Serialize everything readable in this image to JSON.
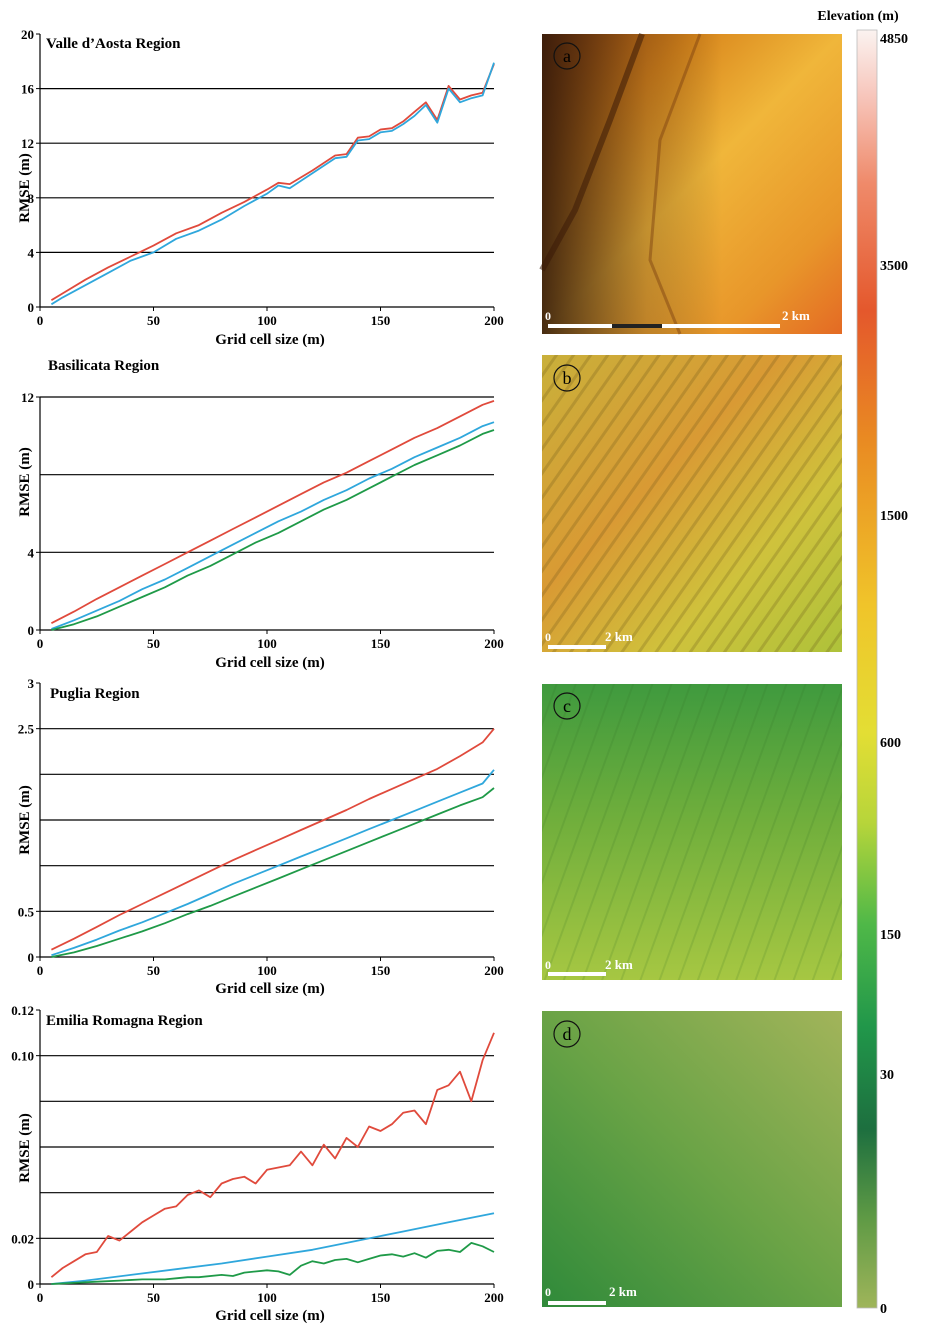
{
  "colors": {
    "red": "#e04a3c",
    "blue": "#2fa7dc",
    "green": "#1f9a48",
    "grid": "#000000"
  },
  "chart_data": [
    {
      "type": "line",
      "title": "Valle d’Aosta Region",
      "xlabel": "Grid cell size (m)",
      "ylabel": "RMSE (m)",
      "xlim": [
        0,
        200
      ],
      "ylim": [
        0,
        20
      ],
      "xticks": [
        0,
        50,
        100,
        150,
        200
      ],
      "xtick_labels": [
        "0",
        "50",
        "100",
        "150",
        "200"
      ],
      "yticks": [
        0,
        4,
        8,
        12,
        16,
        20
      ],
      "ytick_labels": [
        "0",
        "4",
        "8",
        "12",
        "16",
        "20"
      ],
      "grid_lines": [
        4,
        8,
        12,
        16
      ],
      "grid": true,
      "series": [
        {
          "color": "red",
          "x": [
            5,
            10,
            20,
            30,
            40,
            50,
            60,
            70,
            80,
            90,
            100,
            105,
            110,
            120,
            130,
            135,
            140,
            145,
            150,
            155,
            160,
            165,
            170,
            175,
            180,
            185,
            190,
            195,
            200
          ],
          "y": [
            0.5,
            1.0,
            2.0,
            2.9,
            3.7,
            4.5,
            5.4,
            6.0,
            6.9,
            7.7,
            8.6,
            9.1,
            9.0,
            10.0,
            11.1,
            11.2,
            12.4,
            12.5,
            13.0,
            13.1,
            13.6,
            14.3,
            15.0,
            13.7,
            16.2,
            15.2,
            15.5,
            15.7,
            17.8
          ]
        },
        {
          "color": "blue",
          "x": [
            5,
            10,
            20,
            30,
            40,
            50,
            60,
            70,
            80,
            90,
            100,
            105,
            110,
            120,
            130,
            135,
            140,
            145,
            150,
            155,
            160,
            165,
            170,
            175,
            180,
            185,
            190,
            195,
            200
          ],
          "y": [
            0.2,
            0.7,
            1.6,
            2.5,
            3.4,
            4.0,
            5.0,
            5.6,
            6.4,
            7.4,
            8.3,
            8.9,
            8.7,
            9.8,
            10.9,
            11.0,
            12.2,
            12.3,
            12.8,
            12.9,
            13.4,
            14.0,
            14.8,
            13.5,
            16.0,
            15.0,
            15.3,
            15.5,
            17.9
          ]
        }
      ]
    },
    {
      "type": "line",
      "title": "Basilicata Region",
      "xlabel": "Grid cell size (m)",
      "ylabel": "RMSE (m)",
      "xlim": [
        0,
        200
      ],
      "ylim": [
        0,
        12
      ],
      "xticks": [
        0,
        50,
        100,
        150,
        200
      ],
      "xtick_labels": [
        "0",
        "50",
        "100",
        "150",
        "200"
      ],
      "yticks": [
        0,
        4,
        12
      ],
      "ytick_labels": [
        "0",
        "4",
        "12"
      ],
      "grid_lines": [
        4,
        8,
        12
      ],
      "grid": true,
      "series": [
        {
          "color": "red",
          "x": [
            5,
            15,
            25,
            35,
            45,
            55,
            65,
            75,
            85,
            95,
            105,
            115,
            125,
            135,
            145,
            155,
            165,
            175,
            185,
            195,
            200
          ],
          "y": [
            0.35,
            0.95,
            1.6,
            2.2,
            2.8,
            3.4,
            4.0,
            4.6,
            5.2,
            5.8,
            6.4,
            7.0,
            7.6,
            8.1,
            8.7,
            9.3,
            9.9,
            10.4,
            11.0,
            11.6,
            11.8
          ]
        },
        {
          "color": "blue",
          "x": [
            5,
            15,
            25,
            35,
            45,
            55,
            65,
            75,
            85,
            95,
            105,
            115,
            125,
            135,
            145,
            155,
            165,
            175,
            185,
            195,
            200
          ],
          "y": [
            0.05,
            0.5,
            1.0,
            1.5,
            2.1,
            2.6,
            3.2,
            3.8,
            4.4,
            5.0,
            5.6,
            6.1,
            6.7,
            7.2,
            7.8,
            8.3,
            8.9,
            9.4,
            9.9,
            10.5,
            10.7
          ]
        },
        {
          "color": "green",
          "x": [
            5,
            15,
            25,
            35,
            45,
            55,
            65,
            75,
            85,
            95,
            105,
            115,
            125,
            135,
            145,
            155,
            165,
            175,
            185,
            195,
            200
          ],
          "y": [
            0.0,
            0.3,
            0.7,
            1.2,
            1.7,
            2.2,
            2.8,
            3.3,
            3.9,
            4.5,
            5.0,
            5.6,
            6.2,
            6.7,
            7.3,
            7.9,
            8.5,
            9.0,
            9.5,
            10.1,
            10.3
          ]
        }
      ]
    },
    {
      "type": "line",
      "title": "Puglia Region",
      "xlabel": "Grid cell size (m)",
      "ylabel": "RMSE (m)",
      "xlim": [
        0,
        200
      ],
      "ylim": [
        0,
        3
      ],
      "xticks": [
        0,
        50,
        100,
        150,
        200
      ],
      "xtick_labels": [
        "0",
        "50",
        "100",
        "150",
        "200"
      ],
      "yticks": [
        0,
        0.5,
        2.5,
        3
      ],
      "ytick_labels": [
        "0",
        "0.5",
        "2.5",
        "3"
      ],
      "grid_lines": [
        0.5,
        1.0,
        1.5,
        2.0,
        2.5
      ],
      "grid": true,
      "series": [
        {
          "color": "red",
          "x": [
            5,
            15,
            25,
            35,
            45,
            55,
            65,
            75,
            85,
            95,
            105,
            115,
            125,
            135,
            145,
            155,
            165,
            175,
            185,
            195,
            200
          ],
          "y": [
            0.08,
            0.2,
            0.33,
            0.46,
            0.58,
            0.7,
            0.82,
            0.94,
            1.06,
            1.17,
            1.28,
            1.39,
            1.5,
            1.61,
            1.73,
            1.84,
            1.95,
            2.06,
            2.2,
            2.35,
            2.5
          ]
        },
        {
          "color": "blue",
          "x": [
            5,
            15,
            25,
            35,
            45,
            55,
            65,
            75,
            85,
            95,
            105,
            115,
            125,
            135,
            145,
            155,
            165,
            175,
            185,
            195,
            200
          ],
          "y": [
            0.02,
            0.1,
            0.19,
            0.29,
            0.38,
            0.48,
            0.58,
            0.69,
            0.8,
            0.9,
            1.0,
            1.1,
            1.2,
            1.3,
            1.4,
            1.5,
            1.6,
            1.7,
            1.8,
            1.9,
            2.05
          ]
        },
        {
          "color": "green",
          "x": [
            5,
            15,
            25,
            35,
            45,
            55,
            65,
            75,
            85,
            95,
            105,
            115,
            125,
            135,
            145,
            155,
            165,
            175,
            185,
            195,
            200
          ],
          "y": [
            0.0,
            0.05,
            0.12,
            0.2,
            0.28,
            0.37,
            0.47,
            0.56,
            0.66,
            0.76,
            0.86,
            0.96,
            1.06,
            1.16,
            1.26,
            1.36,
            1.46,
            1.56,
            1.66,
            1.75,
            1.85
          ]
        }
      ]
    },
    {
      "type": "line",
      "title": "Emilia Romagna Region",
      "xlabel": "Grid cell size (m)",
      "ylabel": "RMSE (m)",
      "xlim": [
        0,
        200
      ],
      "ylim": [
        0,
        0.12
      ],
      "xticks": [
        0,
        50,
        100,
        150,
        200
      ],
      "xtick_labels": [
        "0",
        "50",
        "100",
        "150",
        "200"
      ],
      "yticks": [
        0,
        0.02,
        0.1,
        0.12
      ],
      "ytick_labels": [
        "0",
        "0.02",
        "0.10",
        "0.12"
      ],
      "grid_lines": [
        0.02,
        0.04,
        0.06,
        0.08,
        0.1
      ],
      "grid": true,
      "series": [
        {
          "color": "red",
          "x": [
            5,
            10,
            15,
            20,
            25,
            30,
            35,
            40,
            45,
            50,
            55,
            60,
            65,
            70,
            75,
            80,
            85,
            90,
            95,
            100,
            105,
            110,
            115,
            120,
            125,
            130,
            135,
            140,
            145,
            150,
            155,
            160,
            165,
            170,
            175,
            180,
            185,
            190,
            195,
            200
          ],
          "y": [
            0.003,
            0.007,
            0.01,
            0.013,
            0.014,
            0.021,
            0.019,
            0.023,
            0.027,
            0.03,
            0.033,
            0.034,
            0.039,
            0.041,
            0.038,
            0.044,
            0.046,
            0.047,
            0.044,
            0.05,
            0.051,
            0.052,
            0.058,
            0.052,
            0.061,
            0.055,
            0.064,
            0.06,
            0.069,
            0.067,
            0.07,
            0.075,
            0.076,
            0.07,
            0.085,
            0.087,
            0.093,
            0.08,
            0.098,
            0.11
          ]
        },
        {
          "color": "blue",
          "x": [
            5,
            20,
            40,
            60,
            80,
            100,
            120,
            140,
            160,
            180,
            200
          ],
          "y": [
            0.0,
            0.0015,
            0.004,
            0.0065,
            0.009,
            0.012,
            0.015,
            0.019,
            0.023,
            0.027,
            0.031
          ]
        },
        {
          "color": "green",
          "x": [
            5,
            15,
            25,
            35,
            45,
            55,
            60,
            65,
            70,
            80,
            85,
            90,
            100,
            105,
            110,
            115,
            120,
            125,
            130,
            135,
            140,
            145,
            150,
            155,
            160,
            165,
            170,
            175,
            180,
            185,
            190,
            195,
            200
          ],
          "y": [
            0.0,
            0.0005,
            0.001,
            0.0015,
            0.002,
            0.002,
            0.0025,
            0.003,
            0.003,
            0.004,
            0.0035,
            0.005,
            0.006,
            0.0055,
            0.004,
            0.008,
            0.01,
            0.009,
            0.0105,
            0.011,
            0.0095,
            0.011,
            0.0125,
            0.013,
            0.012,
            0.0135,
            0.0115,
            0.0145,
            0.015,
            0.014,
            0.018,
            0.0165,
            0.014
          ]
        }
      ]
    }
  ],
  "maps": [
    {
      "label": "a",
      "scale_start": "0",
      "scale_end": "2 km"
    },
    {
      "label": "b",
      "scale_start": "0",
      "scale_end": "2 km"
    },
    {
      "label": "c",
      "scale_start": "0",
      "scale_end": "2 km"
    },
    {
      "label": "d",
      "scale_start": "0",
      "scale_end": "2 km"
    }
  ],
  "colorbar": {
    "title": "Elevation (m)",
    "ticks": [
      "4850",
      "3500",
      "1500",
      "600",
      "150",
      "30",
      "0"
    ]
  }
}
